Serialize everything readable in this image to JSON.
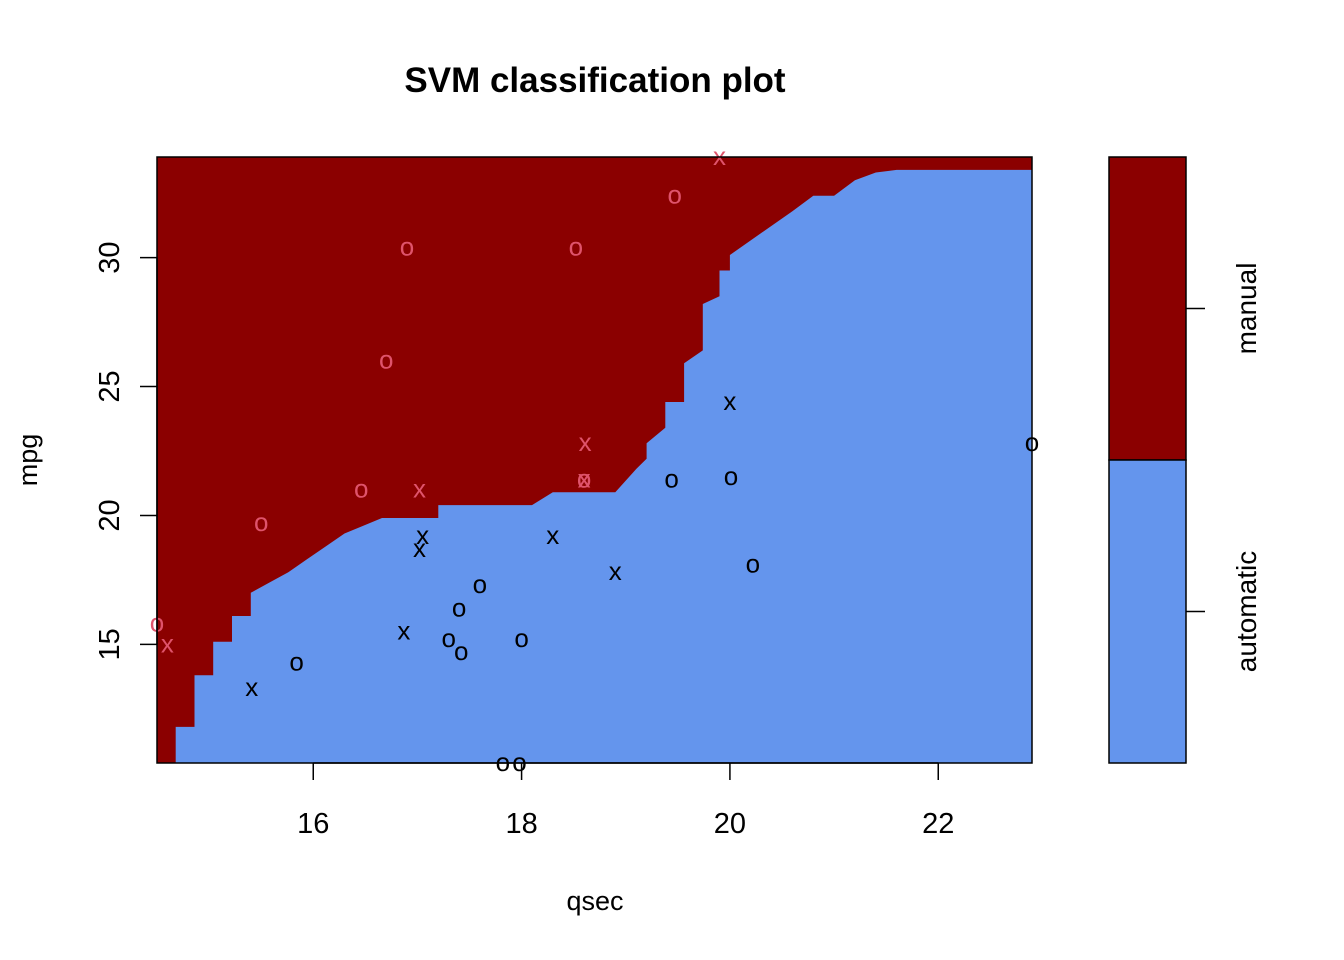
{
  "chart_data": {
    "type": "scatter",
    "title": "SVM classification plot",
    "xlabel": "qsec",
    "ylabel": "mpg",
    "xlim": [
      14.5,
      22.9
    ],
    "ylim": [
      10.4,
      33.9
    ],
    "x_ticks": [
      16,
      18,
      20,
      22
    ],
    "y_ticks": [
      15,
      20,
      25,
      30
    ],
    "grid": false,
    "regions": {
      "classes": [
        "automatic",
        "manual"
      ],
      "colors": {
        "automatic": "#6495ED",
        "manual": "#8B0000"
      },
      "boundary": [
        [
          14.5,
          10.4
        ],
        [
          14.68,
          10.4
        ],
        [
          14.68,
          11.8
        ],
        [
          14.86,
          11.8
        ],
        [
          14.86,
          13.8
        ],
        [
          15.04,
          13.8
        ],
        [
          15.04,
          15.1
        ],
        [
          15.22,
          15.1
        ],
        [
          15.22,
          16.1
        ],
        [
          15.4,
          16.1
        ],
        [
          15.4,
          17.0
        ],
        [
          15.58,
          17.4
        ],
        [
          15.76,
          17.8
        ],
        [
          15.94,
          18.3
        ],
        [
          16.12,
          18.8
        ],
        [
          16.3,
          19.3
        ],
        [
          16.48,
          19.6
        ],
        [
          16.66,
          19.9
        ],
        [
          17.2,
          19.9
        ],
        [
          17.2,
          20.4
        ],
        [
          18.1,
          20.4
        ],
        [
          18.3,
          20.9
        ],
        [
          18.9,
          20.9
        ],
        [
          19.1,
          21.8
        ],
        [
          19.2,
          22.2
        ],
        [
          19.2,
          22.8
        ],
        [
          19.38,
          23.4
        ],
        [
          19.38,
          24.4
        ],
        [
          19.56,
          24.4
        ],
        [
          19.56,
          25.9
        ],
        [
          19.74,
          26.4
        ],
        [
          19.74,
          28.2
        ],
        [
          19.9,
          28.5
        ],
        [
          19.9,
          29.5
        ],
        [
          20.0,
          29.5
        ],
        [
          20.0,
          30.1
        ],
        [
          20.6,
          31.8
        ],
        [
          20.8,
          32.4
        ],
        [
          21.0,
          32.4
        ],
        [
          21.2,
          33.0
        ],
        [
          21.4,
          33.3
        ],
        [
          21.6,
          33.4
        ],
        [
          22.9,
          33.4
        ]
      ]
    },
    "series": [
      {
        "class": "manual",
        "color": "#DF536B",
        "points": [
          {
            "x": 16.46,
            "y": 21.0,
            "marker": "o"
          },
          {
            "x": 17.02,
            "y": 21.0,
            "marker": "x"
          },
          {
            "x": 18.61,
            "y": 22.8,
            "marker": "x"
          },
          {
            "x": 19.47,
            "y": 32.4,
            "marker": "o"
          },
          {
            "x": 18.52,
            "y": 30.4,
            "marker": "o"
          },
          {
            "x": 19.9,
            "y": 33.9,
            "marker": "x"
          },
          {
            "x": 16.9,
            "y": 30.4,
            "marker": "o"
          },
          {
            "x": 16.7,
            "y": 26.0,
            "marker": "o"
          },
          {
            "x": 18.6,
            "y": 21.4,
            "marker": "x"
          },
          {
            "x": 14.5,
            "y": 15.8,
            "marker": "o"
          },
          {
            "x": 15.5,
            "y": 19.7,
            "marker": "o"
          },
          {
            "x": 14.6,
            "y": 15.0,
            "marker": "x"
          },
          {
            "x": 18.6,
            "y": 21.4,
            "marker": "o"
          }
        ]
      },
      {
        "class": "automatic",
        "color": "#000000",
        "points": [
          {
            "x": 19.44,
            "y": 21.4,
            "marker": "o"
          },
          {
            "x": 17.02,
            "y": 18.7,
            "marker": "x"
          },
          {
            "x": 20.22,
            "y": 18.1,
            "marker": "o"
          },
          {
            "x": 15.84,
            "y": 14.3,
            "marker": "o"
          },
          {
            "x": 20.0,
            "y": 24.4,
            "marker": "x"
          },
          {
            "x": 22.9,
            "y": 22.8,
            "marker": "o"
          },
          {
            "x": 18.3,
            "y": 19.2,
            "marker": "x"
          },
          {
            "x": 18.9,
            "y": 17.8,
            "marker": "x"
          },
          {
            "x": 17.4,
            "y": 16.4,
            "marker": "o"
          },
          {
            "x": 17.6,
            "y": 17.3,
            "marker": "o"
          },
          {
            "x": 18.0,
            "y": 15.2,
            "marker": "o"
          },
          {
            "x": 17.98,
            "y": 10.4,
            "marker": "o"
          },
          {
            "x": 17.82,
            "y": 10.4,
            "marker": "o"
          },
          {
            "x": 17.42,
            "y": 14.7,
            "marker": "o"
          },
          {
            "x": 20.01,
            "y": 21.5,
            "marker": "o"
          },
          {
            "x": 16.87,
            "y": 15.5,
            "marker": "x"
          },
          {
            "x": 17.3,
            "y": 15.2,
            "marker": "o"
          },
          {
            "x": 15.41,
            "y": 13.3,
            "marker": "x"
          },
          {
            "x": 17.05,
            "y": 19.2,
            "marker": "x"
          }
        ]
      }
    ]
  },
  "legend": {
    "items": [
      {
        "label": "manual",
        "color": "#8B0000"
      },
      {
        "label": "automatic",
        "color": "#6495ED"
      }
    ]
  }
}
